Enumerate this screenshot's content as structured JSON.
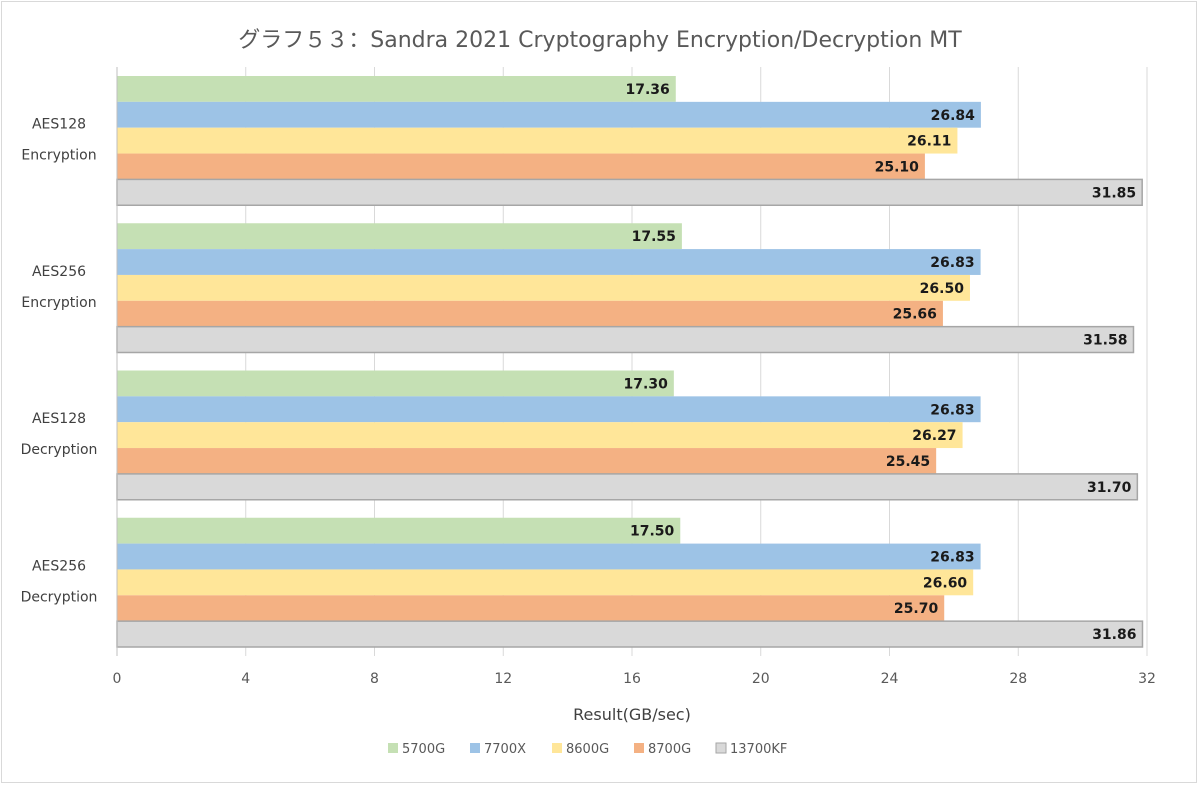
{
  "chart_data": {
    "type": "bar",
    "orientation": "horizontal",
    "title": "グラフ５３：Sandra 2021 Cryptography Encryption/Decryption MT",
    "xlabel": "Result(GB/sec)",
    "ylabel": "",
    "xlim": [
      0,
      32
    ],
    "x_ticks": [
      0,
      4,
      8,
      12,
      16,
      20,
      24,
      28,
      32
    ],
    "grid": true,
    "legend_position": "bottom",
    "categories": [
      [
        "AES128",
        "Encryption"
      ],
      [
        "AES256",
        "Encryption"
      ],
      [
        "AES128",
        "Decryption"
      ],
      [
        "AES256",
        "Decryption"
      ]
    ],
    "series": [
      {
        "name": "5700G",
        "color": "#c5e0b4",
        "values": [
          17.36,
          17.55,
          17.3,
          17.5
        ],
        "labels": [
          "17.36",
          "17.55",
          "17.30",
          "17.50"
        ]
      },
      {
        "name": "7700X",
        "color": "#9dc3e6",
        "values": [
          26.84,
          26.83,
          26.83,
          26.83
        ],
        "labels": [
          "26.84",
          "26.83",
          "26.83",
          "26.83"
        ]
      },
      {
        "name": "8600G",
        "color": "#ffe699",
        "values": [
          26.11,
          26.5,
          26.27,
          26.6
        ],
        "labels": [
          "26.11",
          "26.50",
          "26.27",
          "26.60"
        ]
      },
      {
        "name": "8700G",
        "color": "#f4b183",
        "values": [
          25.1,
          25.66,
          25.45,
          25.7
        ],
        "labels": [
          "25.10",
          "25.66",
          "25.45",
          "25.70"
        ]
      },
      {
        "name": "13700KF",
        "color": "#d9d9d9",
        "border": "#a6a6a6",
        "values": [
          31.85,
          31.58,
          31.7,
          31.86
        ],
        "labels": [
          "31.85",
          "31.58",
          "31.70",
          "31.86"
        ]
      }
    ]
  }
}
